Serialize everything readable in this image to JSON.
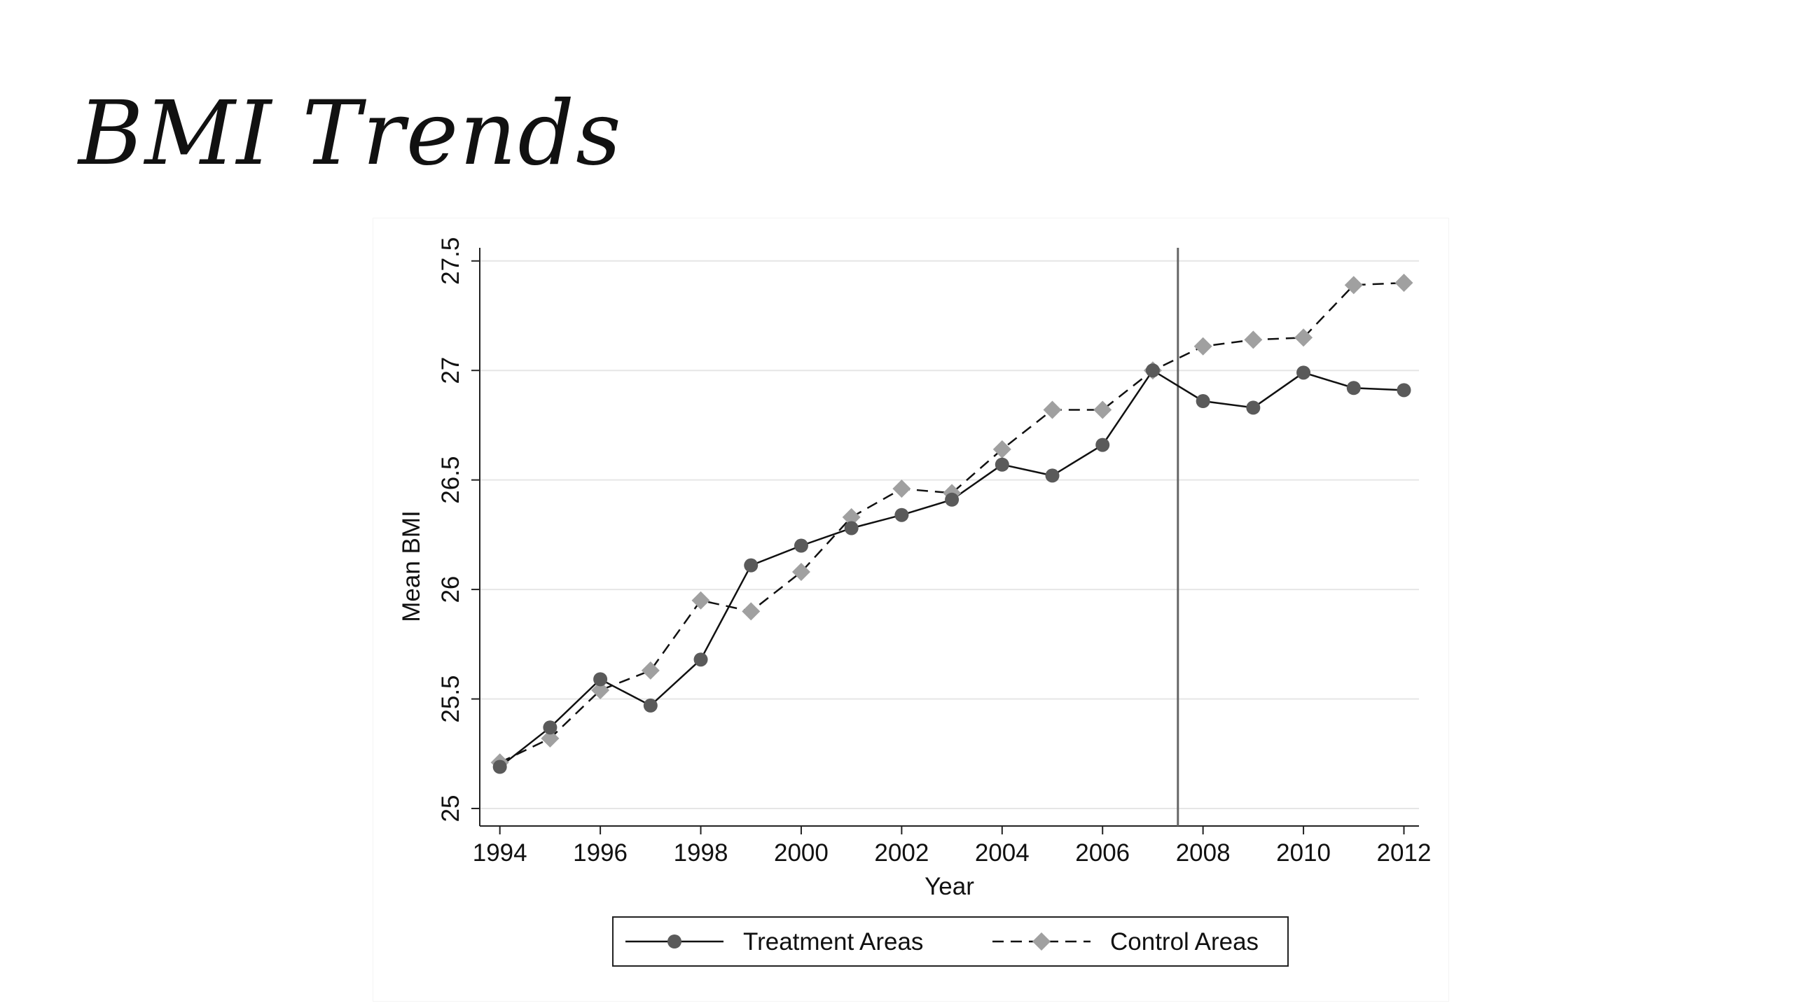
{
  "slide": {
    "title": "BMI Trends"
  },
  "chart_data": {
    "type": "line",
    "title": "",
    "xlabel": "Year",
    "ylabel": "Mean BMI",
    "xlim": [
      1993.6,
      2012.3
    ],
    "ylim": [
      24.92,
      27.56
    ],
    "x_ticks": [
      1994,
      1996,
      1998,
      2000,
      2002,
      2004,
      2006,
      2008,
      2010,
      2012
    ],
    "x_tick_labels": [
      "1994",
      "1996",
      "1998",
      "2000",
      "2002",
      "2004",
      "2006",
      "2008",
      "2010",
      "2012"
    ],
    "y_ticks": [
      25,
      25.5,
      26,
      26.5,
      27,
      27.5
    ],
    "y_tick_labels": [
      "25",
      "25.5",
      "26",
      "26.5",
      "27",
      "27.5"
    ],
    "grid": true,
    "vertical_reference_line": 2007.5,
    "legend_position": "bottom",
    "x": [
      1994,
      1995,
      1996,
      1997,
      1998,
      1999,
      2000,
      2001,
      2002,
      2003,
      2004,
      2005,
      2006,
      2007,
      2008,
      2009,
      2010,
      2011,
      2012
    ],
    "series": [
      {
        "name": "Treatment Areas",
        "line_style": "solid",
        "marker": "circle",
        "color": "#5a5a5a",
        "values": [
          25.19,
          25.37,
          25.59,
          25.47,
          25.68,
          26.11,
          26.2,
          26.28,
          26.34,
          26.41,
          26.57,
          26.52,
          26.66,
          27.0,
          26.86,
          26.83,
          26.99,
          26.92,
          26.91
        ]
      },
      {
        "name": "Control Areas",
        "line_style": "dashed",
        "marker": "diamond",
        "color": "#a0a0a0",
        "values": [
          25.21,
          25.32,
          25.54,
          25.63,
          25.95,
          25.9,
          26.08,
          26.33,
          26.46,
          26.44,
          26.64,
          26.82,
          26.82,
          27.0,
          27.11,
          27.14,
          27.15,
          27.39,
          27.4
        ]
      }
    ],
    "colors": {
      "grid": "#e6e6e6",
      "axis": "#222222",
      "reference_line": "#666666",
      "line": "#111111"
    }
  }
}
